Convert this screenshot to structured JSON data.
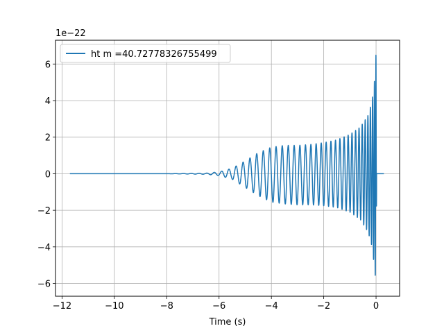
{
  "chart_data": {
    "type": "line",
    "title": "",
    "xlabel": "Time (s)",
    "ylabel": "",
    "y_offset_label": "1e−22",
    "y_scale_exponent": -22,
    "xlim": [
      -12.25,
      0.9
    ],
    "ylim": [
      -6.7,
      7.3
    ],
    "x_ticks": [
      -12,
      -10,
      -8,
      -6,
      -4,
      -2,
      0
    ],
    "x_tick_labels": [
      "−12",
      "−10",
      "−8",
      "−6",
      "−4",
      "−2",
      "0"
    ],
    "y_ticks": [
      -6,
      -4,
      -2,
      0,
      2,
      4,
      6
    ],
    "y_tick_labels": [
      "−6",
      "−4",
      "−2",
      "0",
      "2",
      "4",
      "6"
    ],
    "grid": true,
    "legend_position": "top-left",
    "series": [
      {
        "name": "ht m =40.72778326755499",
        "color": "#1f77b4",
        "x_range": [
          -11.7,
          0.3
        ],
        "merger_time": 0.0,
        "envelope": {
          "t": [
            -11.7,
            -8,
            -7,
            -6.5,
            -6,
            -5.5,
            -5,
            -4.5,
            -4,
            -3.5,
            -3,
            -2.5,
            -2,
            -1.5,
            -1,
            -0.6,
            -0.3,
            -0.15,
            -0.05,
            0.0,
            0.02,
            0.05,
            0.3
          ],
          "upper": [
            0.0,
            0.0,
            0.02,
            0.03,
            0.1,
            0.3,
            0.7,
            1.15,
            1.45,
            1.55,
            1.55,
            1.6,
            1.7,
            1.85,
            2.15,
            2.55,
            3.2,
            4.0,
            5.2,
            6.6,
            1.0,
            0.05,
            0.0
          ],
          "lower": [
            0.0,
            0.0,
            -0.02,
            -0.03,
            -0.1,
            -0.3,
            -0.75,
            -1.2,
            -1.55,
            -1.65,
            -1.7,
            -1.7,
            -1.75,
            -1.85,
            -2.1,
            -2.5,
            -3.2,
            -4.0,
            -5.3,
            -6.0,
            -1.0,
            -0.05,
            0.0
          ]
        }
      }
    ]
  }
}
